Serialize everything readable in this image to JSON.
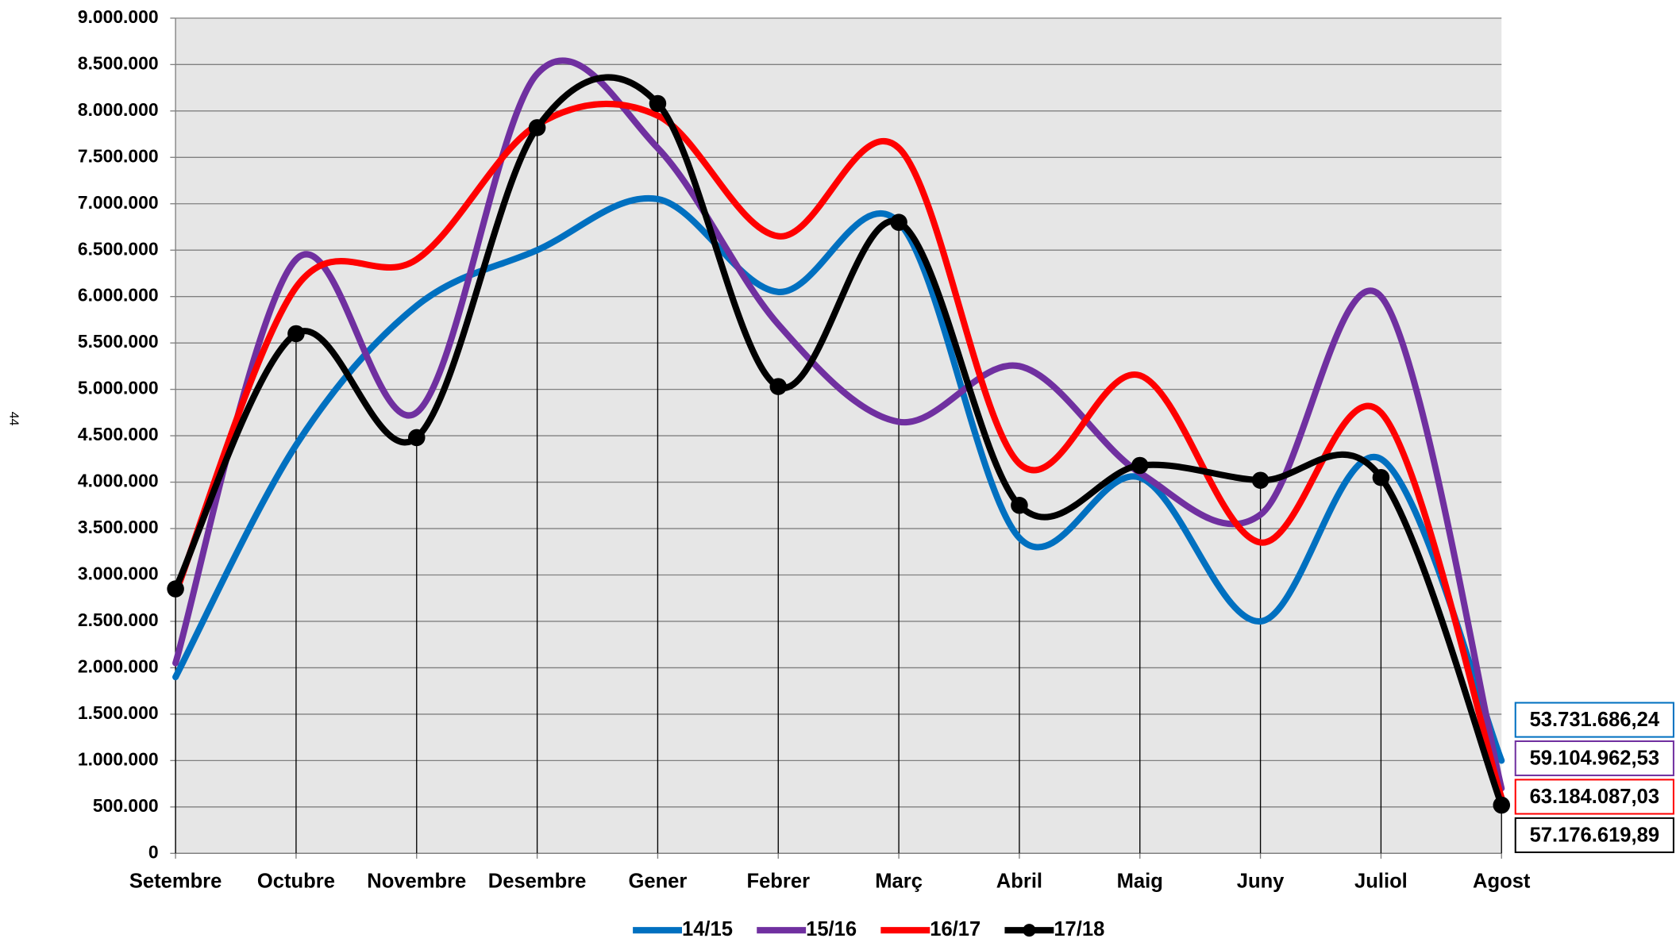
{
  "page_number": "44",
  "chart_data": {
    "type": "line",
    "smooth": true,
    "grid": true,
    "legend": "bottom",
    "categories": [
      "Setembre",
      "Octubre",
      "Novembre",
      "Desembre",
      "Gener",
      "Febrer",
      "Març",
      "Abril",
      "Maig",
      "Juny",
      "Juliol",
      "Agost"
    ],
    "ylim": [
      0,
      9000000
    ],
    "yticks": [
      0,
      {
        "value": 500000,
        "label": "500.000"
      },
      {
        "value": 1000000,
        "label": "1.000.000"
      },
      {
        "value": 1500000,
        "label": "1.500.000"
      },
      {
        "value": 2000000,
        "label": "2.000.000"
      },
      {
        "value": 2500000,
        "label": "2.500.000"
      },
      {
        "value": 3000000,
        "label": "3.000.000"
      },
      {
        "value": 3500000,
        "label": "3.500.000"
      },
      {
        "value": 4000000,
        "label": "4.000.000"
      },
      {
        "value": 4500000,
        "label": "4.500.000"
      },
      {
        "value": 5000000,
        "label": "5.000.000"
      },
      {
        "value": 5500000,
        "label": "5.500.000"
      },
      {
        "value": 6000000,
        "label": "6.000.000"
      },
      {
        "value": 6500000,
        "label": "6.500.000"
      },
      {
        "value": 7000000,
        "label": "7.000.000"
      },
      {
        "value": 7500000,
        "label": "7.500.000"
      },
      {
        "value": 8000000,
        "label": "8.000.000"
      },
      {
        "value": 8500000,
        "label": "8.500.000"
      },
      {
        "value": 9000000,
        "label": "9.000.000"
      }
    ],
    "series": [
      {
        "name": "14/15",
        "color": "#0070c0",
        "markers": false,
        "total_label": "53.731.686,24",
        "values": [
          1900000,
          4400000,
          5900000,
          6500000,
          7050000,
          6050000,
          6800000,
          3400000,
          4050000,
          2500000,
          4250000,
          1000000
        ]
      },
      {
        "name": "15/16",
        "color": "#7030a0",
        "markers": false,
        "total_label": "59.104.962,53",
        "values": [
          2050000,
          6400000,
          4750000,
          8400000,
          7600000,
          5700000,
          4650000,
          5250000,
          4100000,
          3650000,
          6000000,
          700000
        ]
      },
      {
        "name": "16/17",
        "color": "#ff0000",
        "markers": false,
        "total_label": "63.184.087,03",
        "values": [
          2800000,
          6100000,
          6400000,
          7850000,
          7950000,
          6650000,
          7600000,
          4200000,
          5150000,
          3350000,
          4750000,
          600000
        ]
      },
      {
        "name": "17/18",
        "color": "#000000",
        "markers": true,
        "drop_lines": true,
        "total_label": "57.176.619,89",
        "values": [
          2850000,
          5600000,
          4480000,
          7820000,
          8080000,
          5030000,
          6800000,
          3750000,
          4180000,
          4020000,
          4050000,
          520000
        ]
      }
    ]
  }
}
